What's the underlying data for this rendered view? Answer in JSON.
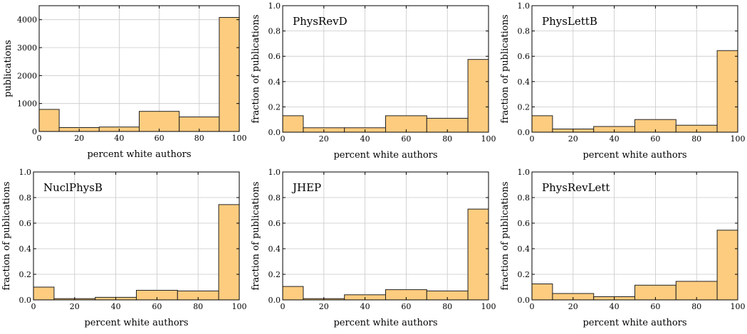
{
  "chart_data": [
    {
      "type": "bar",
      "title": "",
      "xlabel": "percent white authors",
      "ylabel": "publications",
      "xlim": [
        0,
        100
      ],
      "ylim": [
        0,
        4500
      ],
      "xticks": [
        0,
        20,
        40,
        60,
        80,
        100
      ],
      "yticks": [
        0,
        1000,
        2000,
        3000,
        4000
      ],
      "bins": [
        [
          0,
          10
        ],
        [
          10,
          30
        ],
        [
          30,
          50
        ],
        [
          50,
          70
        ],
        [
          70,
          90
        ],
        [
          90,
          100
        ]
      ],
      "values": [
        790,
        140,
        160,
        720,
        520,
        4080
      ],
      "grid": true
    },
    {
      "type": "bar",
      "title": "PhysRevD",
      "xlabel": "percent white authors",
      "ylabel": "fraction of publications",
      "xlim": [
        0,
        100
      ],
      "ylim": [
        0,
        1.0
      ],
      "xticks": [
        0,
        20,
        40,
        60,
        80,
        100
      ],
      "yticks": [
        0.0,
        0.2,
        0.4,
        0.6,
        0.8,
        1.0
      ],
      "bins": [
        [
          0,
          10
        ],
        [
          10,
          30
        ],
        [
          30,
          50
        ],
        [
          50,
          70
        ],
        [
          70,
          90
        ],
        [
          90,
          100
        ]
      ],
      "values": [
        0.13,
        0.035,
        0.035,
        0.13,
        0.11,
        0.575
      ],
      "grid": true
    },
    {
      "type": "bar",
      "title": "PhysLettB",
      "xlabel": "percent white authors",
      "ylabel": "fraction of publications",
      "xlim": [
        0,
        100
      ],
      "ylim": [
        0,
        1.0
      ],
      "xticks": [
        0,
        20,
        40,
        60,
        80,
        100
      ],
      "yticks": [
        0.0,
        0.2,
        0.4,
        0.6,
        0.8,
        1.0
      ],
      "bins": [
        [
          0,
          10
        ],
        [
          10,
          30
        ],
        [
          30,
          50
        ],
        [
          50,
          70
        ],
        [
          70,
          90
        ],
        [
          90,
          100
        ]
      ],
      "values": [
        0.13,
        0.025,
        0.045,
        0.1,
        0.055,
        0.645
      ],
      "grid": true
    },
    {
      "type": "bar",
      "title": "NuclPhysB",
      "xlabel": "percent white authors",
      "ylabel": "fraction of publications",
      "xlim": [
        0,
        100
      ],
      "ylim": [
        0,
        1.0
      ],
      "xticks": [
        0,
        20,
        40,
        60,
        80,
        100
      ],
      "yticks": [
        0.0,
        0.2,
        0.4,
        0.6,
        0.8,
        1.0
      ],
      "bins": [
        [
          0,
          10
        ],
        [
          10,
          30
        ],
        [
          30,
          50
        ],
        [
          50,
          70
        ],
        [
          70,
          90
        ],
        [
          90,
          100
        ]
      ],
      "values": [
        0.1,
        0.01,
        0.02,
        0.075,
        0.07,
        0.745
      ],
      "grid": true
    },
    {
      "type": "bar",
      "title": "JHEP",
      "xlabel": "percent white authors",
      "ylabel": "fraction of publications",
      "xlim": [
        0,
        100
      ],
      "ylim": [
        0,
        1.0
      ],
      "xticks": [
        0,
        20,
        40,
        60,
        80,
        100
      ],
      "yticks": [
        0.0,
        0.2,
        0.4,
        0.6,
        0.8,
        1.0
      ],
      "bins": [
        [
          0,
          10
        ],
        [
          10,
          30
        ],
        [
          30,
          50
        ],
        [
          50,
          70
        ],
        [
          70,
          90
        ],
        [
          90,
          100
        ]
      ],
      "values": [
        0.105,
        0.01,
        0.04,
        0.08,
        0.07,
        0.71
      ],
      "grid": true
    },
    {
      "type": "bar",
      "title": "PhysRevLett",
      "xlabel": "percent white authors",
      "ylabel": "fraction of publications",
      "xlim": [
        0,
        100
      ],
      "ylim": [
        0,
        1.0
      ],
      "xticks": [
        0,
        20,
        40,
        60,
        80,
        100
      ],
      "yticks": [
        0.0,
        0.2,
        0.4,
        0.6,
        0.8,
        1.0
      ],
      "bins": [
        [
          0,
          10
        ],
        [
          10,
          30
        ],
        [
          30,
          50
        ],
        [
          50,
          70
        ],
        [
          70,
          90
        ],
        [
          90,
          100
        ]
      ],
      "values": [
        0.125,
        0.05,
        0.025,
        0.115,
        0.145,
        0.545
      ],
      "grid": true
    }
  ],
  "colors": {
    "bar_fill": "#fdcc7f",
    "bar_edge": "#222222",
    "grid": "#c8c8c8"
  }
}
